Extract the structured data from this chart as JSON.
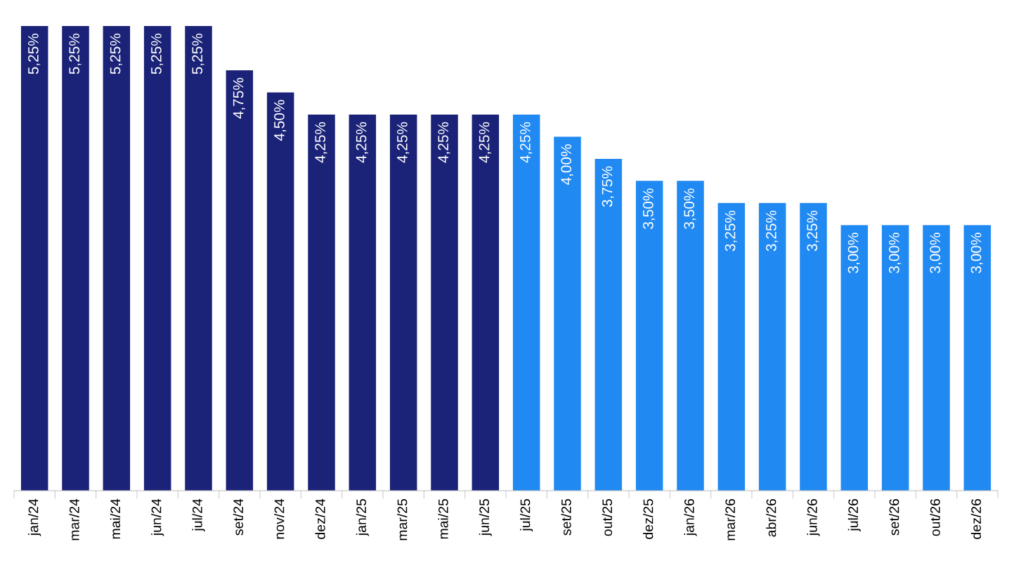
{
  "chart_data": {
    "type": "bar",
    "categories": [
      "jan/24",
      "mar/24",
      "mai/24",
      "jun/24",
      "jul/24",
      "set/24",
      "nov/24",
      "dez/24",
      "jan/25",
      "mar/25",
      "mai/25",
      "jun/25",
      "jul/25",
      "set/25",
      "out/25",
      "dez/25",
      "jan/26",
      "mar/26",
      "abr/26",
      "jun/26",
      "jul/26",
      "set/26",
      "out/26",
      "dez/26"
    ],
    "values": [
      5.25,
      5.25,
      5.25,
      5.25,
      5.25,
      4.75,
      4.5,
      4.25,
      4.25,
      4.25,
      4.25,
      4.25,
      4.25,
      4.0,
      3.75,
      3.5,
      3.5,
      3.25,
      3.25,
      3.25,
      3.0,
      3.0,
      3.0,
      3.0
    ],
    "colors": [
      "#1b2378",
      "#1b2378",
      "#1b2378",
      "#1b2378",
      "#1b2378",
      "#1b2378",
      "#1b2378",
      "#1b2378",
      "#1b2378",
      "#1b2378",
      "#1b2378",
      "#1b2378",
      "#2089f2",
      "#2089f2",
      "#2089f2",
      "#2089f2",
      "#2089f2",
      "#2089f2",
      "#2089f2",
      "#2089f2",
      "#2089f2",
      "#2089f2",
      "#2089f2",
      "#2089f2"
    ],
    "value_labels": [
      "5,25%",
      "5,25%",
      "5,25%",
      "5,25%",
      "5,25%",
      "4,75%",
      "4,50%",
      "4,25%",
      "4,25%",
      "4,25%",
      "4,25%",
      "4,25%",
      "4,25%",
      "4,00%",
      "3,75%",
      "3,50%",
      "3,50%",
      "3,25%",
      "3,25%",
      "3,25%",
      "3,00%",
      "3,00%",
      "3,00%",
      "3,00%"
    ],
    "grid": false,
    "legend": false
  }
}
